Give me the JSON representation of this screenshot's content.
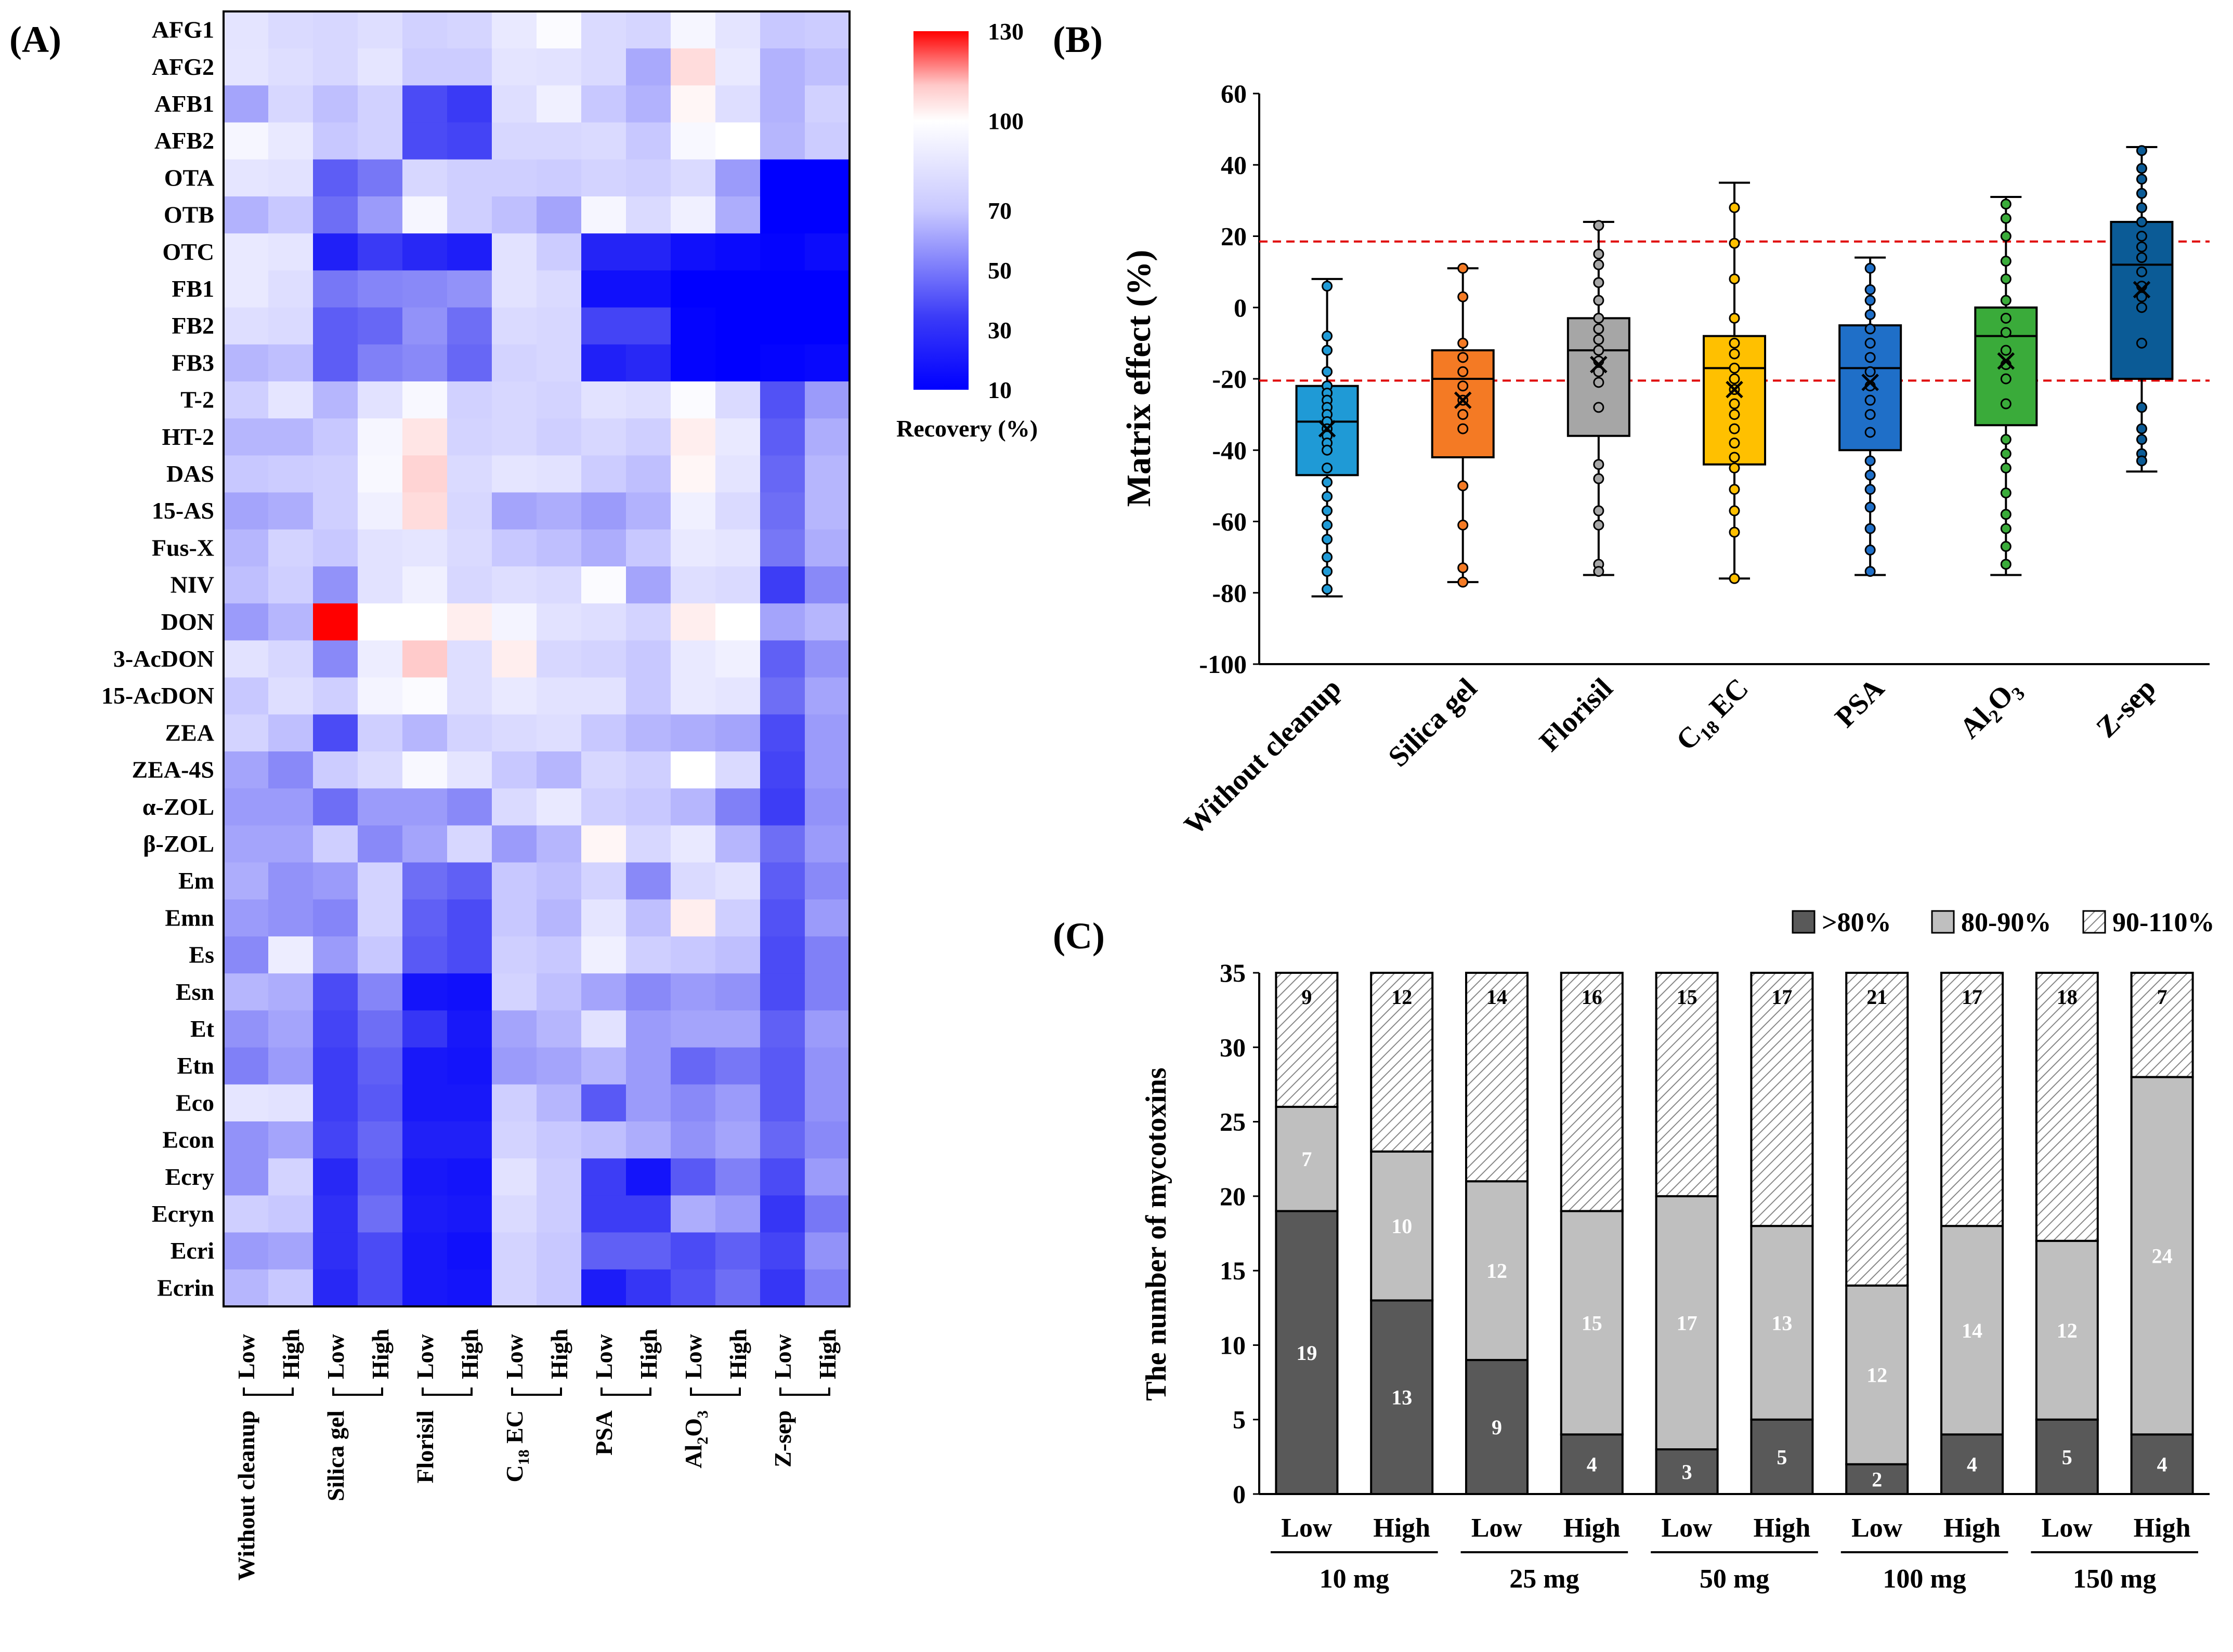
{
  "panel_labels": {
    "a": "(A)",
    "b": "(B)",
    "c": "(C)"
  },
  "chart_data": [
    {
      "type": "heatmap",
      "panel": "(A)",
      "row_labels": [
        "AFG1",
        "AFG2",
        "AFB1",
        "AFB2",
        "OTA",
        "OTB",
        "OTC",
        "FB1",
        "FB2",
        "FB3",
        "T-2",
        "HT-2",
        "DAS",
        "15-AS",
        "Fus-X",
        "NIV",
        "DON",
        "3-AcDON",
        "15-AcDON",
        "ZEA",
        "ZEA-4S",
        "α-ZOL",
        "β-ZOL",
        "Em",
        "Emn",
        "Es",
        "Esn",
        "Et",
        "Etn",
        "Eco",
        "Econ",
        "Ecry",
        "Ecryn",
        "Ecri",
        "Ecrin"
      ],
      "column_labels": [
        "Low",
        "High",
        "Low",
        "High",
        "Low",
        "High",
        "Low",
        "High",
        "Low",
        "High",
        "Low",
        "High",
        "Low",
        "High"
      ],
      "group_labels": [
        "Without cleanup",
        "Silica gel",
        "Florisil",
        "C18 EC",
        "PSA",
        "Al2O3",
        "Z-sep"
      ],
      "colorbar": {
        "ticks": [
          130,
          100,
          70,
          50,
          30,
          10
        ],
        "min": 10,
        "max": 130,
        "label": "Recovery (%)",
        "low_color": "#0000ff",
        "mid_color": "#ffffff",
        "high_color": "#ff0000"
      },
      "values": [
        [
          85,
          80,
          78,
          82,
          75,
          77,
          88,
          98,
          80,
          77,
          95,
          85,
          70,
          72
        ],
        [
          86,
          82,
          78,
          86,
          72,
          72,
          85,
          84,
          80,
          63,
          108,
          88,
          65,
          68
        ],
        [
          62,
          78,
          68,
          75,
          40,
          35,
          82,
          92,
          70,
          65,
          102,
          82,
          65,
          75
        ],
        [
          95,
          88,
          70,
          75,
          40,
          38,
          78,
          78,
          80,
          70,
          96,
          100,
          66,
          72
        ],
        [
          86,
          84,
          45,
          52,
          78,
          74,
          74,
          72,
          76,
          74,
          80,
          60,
          10,
          10
        ],
        [
          65,
          70,
          50,
          60,
          95,
          74,
          68,
          62,
          95,
          80,
          92,
          64,
          10,
          10
        ],
        [
          88,
          86,
          26,
          35,
          30,
          25,
          84,
          72,
          28,
          28,
          18,
          15,
          12,
          16
        ],
        [
          88,
          82,
          52,
          55,
          56,
          58,
          84,
          80,
          18,
          18,
          10,
          10,
          10,
          10
        ],
        [
          82,
          80,
          45,
          48,
          58,
          50,
          80,
          78,
          38,
          38,
          12,
          10,
          10,
          10
        ],
        [
          66,
          68,
          45,
          54,
          56,
          48,
          76,
          78,
          26,
          30,
          12,
          10,
          12,
          14
        ],
        [
          74,
          86,
          66,
          84,
          96,
          75,
          78,
          76,
          84,
          82,
          98,
          80,
          42,
          60
        ],
        [
          66,
          66,
          70,
          95,
          106,
          76,
          78,
          74,
          78,
          74,
          104,
          88,
          45,
          64
        ],
        [
          70,
          72,
          74,
          96,
          110,
          80,
          86,
          84,
          72,
          68,
          102,
          85,
          48,
          66
        ],
        [
          62,
          64,
          74,
          92,
          108,
          78,
          62,
          64,
          60,
          65,
          92,
          80,
          50,
          66
        ],
        [
          66,
          76,
          70,
          84,
          86,
          80,
          70,
          68,
          64,
          70,
          88,
          86,
          52,
          64
        ],
        [
          68,
          74,
          58,
          84,
          92,
          78,
          82,
          80,
          98,
          62,
          82,
          80,
          36,
          56
        ],
        [
          60,
          66,
          130,
          100,
          100,
          104,
          94,
          84,
          82,
          76,
          104,
          100,
          62,
          66
        ],
        [
          84,
          78,
          56,
          90,
          112,
          82,
          104,
          78,
          76,
          70,
          88,
          92,
          46,
          58
        ],
        [
          70,
          82,
          74,
          94,
          98,
          82,
          88,
          84,
          84,
          70,
          88,
          86,
          50,
          62
        ],
        [
          76,
          68,
          40,
          74,
          66,
          76,
          80,
          82,
          70,
          66,
          64,
          62,
          40,
          60
        ],
        [
          62,
          56,
          72,
          80,
          96,
          86,
          70,
          66,
          78,
          74,
          100,
          80,
          38,
          60
        ],
        [
          60,
          60,
          50,
          60,
          60,
          56,
          80,
          88,
          74,
          70,
          66,
          54,
          36,
          58
        ],
        [
          62,
          62,
          74,
          56,
          62,
          78,
          60,
          66,
          102,
          78,
          88,
          66,
          50,
          60
        ],
        [
          64,
          58,
          60,
          76,
          50,
          46,
          70,
          68,
          76,
          56,
          80,
          84,
          45,
          56
        ],
        [
          60,
          58,
          55,
          76,
          46,
          40,
          70,
          66,
          86,
          68,
          104,
          74,
          42,
          60
        ],
        [
          56,
          90,
          60,
          70,
          44,
          40,
          74,
          70,
          92,
          74,
          70,
          68,
          40,
          54
        ],
        [
          66,
          64,
          40,
          55,
          20,
          18,
          76,
          68,
          62,
          56,
          60,
          58,
          40,
          54
        ],
        [
          58,
          62,
          38,
          50,
          34,
          22,
          62,
          66,
          84,
          60,
          62,
          62,
          46,
          60
        ],
        [
          54,
          60,
          36,
          46,
          22,
          20,
          60,
          62,
          66,
          60,
          48,
          52,
          44,
          58
        ],
        [
          86,
          84,
          36,
          44,
          22,
          22,
          74,
          66,
          44,
          60,
          56,
          60,
          44,
          58
        ],
        [
          58,
          62,
          38,
          48,
          26,
          26,
          76,
          70,
          68,
          64,
          58,
          62,
          48,
          56
        ],
        [
          58,
          76,
          30,
          46,
          22,
          20,
          84,
          72,
          36,
          20,
          44,
          54,
          40,
          60
        ],
        [
          74,
          70,
          32,
          50,
          24,
          22,
          80,
          72,
          36,
          36,
          64,
          60,
          34,
          52
        ],
        [
          60,
          62,
          32,
          40,
          22,
          18,
          76,
          70,
          46,
          46,
          40,
          46,
          38,
          58
        ],
        [
          66,
          70,
          30,
          40,
          22,
          20,
          76,
          70,
          24,
          34,
          42,
          50,
          34,
          54
        ]
      ]
    },
    {
      "type": "box",
      "panel": "(B)",
      "ylabel": "Matrix effect (%)",
      "ylim": [
        -100,
        60
      ],
      "yticks": [
        60,
        40,
        20,
        0,
        -20,
        -40,
        -60,
        -80,
        -100
      ],
      "reference_lines": [
        18.5,
        -20.5
      ],
      "categories": [
        "Without cleanup",
        "Silica gel",
        "Florisil",
        "C18 EC",
        "PSA",
        "Al2O3",
        "Z-sep"
      ],
      "series": [
        {
          "name": "Without cleanup",
          "color": "#1f9ad6",
          "min": -81,
          "q1": -47,
          "median": -32,
          "q3": -22,
          "max": 8,
          "mean": -34,
          "points": [
            6,
            -8,
            -12,
            -18,
            -22,
            -24,
            -26,
            -28,
            -30,
            -32,
            -34,
            -36,
            -38,
            -40,
            -45,
            -49,
            -53,
            -57,
            -61,
            -65,
            -70,
            -74,
            -79
          ]
        },
        {
          "name": "Silica gel",
          "color": "#f47a24",
          "min": -77,
          "q1": -42,
          "median": -20,
          "q3": -12,
          "max": 11,
          "mean": -26,
          "points": [
            11,
            3,
            -10,
            -14,
            -18,
            -22,
            -26,
            -30,
            -34,
            -50,
            -61,
            -73,
            -77
          ]
        },
        {
          "name": "Florisil",
          "color": "#a6a6a6",
          "min": -75,
          "q1": -36,
          "median": -12,
          "q3": -3,
          "max": 24,
          "mean": -16,
          "points": [
            23,
            15,
            12,
            7,
            2,
            -3,
            -6,
            -9,
            -12,
            -15,
            -18,
            -21,
            -28,
            -44,
            -48,
            -57,
            -61,
            -72,
            -74
          ]
        },
        {
          "name": "C18 EC",
          "color": "#ffc000",
          "min": -76,
          "q1": -44,
          "median": -17,
          "q3": -8,
          "max": 35,
          "mean": -23,
          "points": [
            28,
            18,
            8,
            -3,
            -10,
            -13,
            -17,
            -20,
            -23,
            -27,
            -30,
            -34,
            -38,
            -42,
            -45,
            -51,
            -57,
            -63,
            -76
          ]
        },
        {
          "name": "PSA",
          "color": "#1f6fc8",
          "min": -75,
          "q1": -40,
          "median": -17,
          "q3": -5,
          "max": 14,
          "mean": -21,
          "points": [
            11,
            5,
            2,
            -2,
            -6,
            -10,
            -14,
            -18,
            -22,
            -26,
            -30,
            -35,
            -43,
            -47,
            -51,
            -56,
            -62,
            -68,
            -74
          ]
        },
        {
          "name": "Al2O3",
          "color": "#3aab3a",
          "min": -75,
          "q1": -33,
          "median": -8,
          "q3": 0,
          "max": 31,
          "mean": -15,
          "points": [
            29,
            25,
            20,
            13,
            8,
            2,
            -3,
            -7,
            -12,
            -16,
            -20,
            -27,
            -37,
            -41,
            -45,
            -52,
            -58,
            -62,
            -67,
            -72
          ]
        },
        {
          "name": "Z-sep",
          "color": "#0b5b96",
          "min": -46,
          "q1": -20,
          "median": 12,
          "q3": 24,
          "max": 45,
          "mean": 5,
          "points": [
            44,
            39,
            36,
            32,
            28,
            24,
            20,
            17,
            14,
            10,
            6,
            3,
            0,
            -10,
            -28,
            -34,
            -37,
            -41,
            -43
          ]
        }
      ]
    },
    {
      "type": "bar",
      "stacked": true,
      "panel": "(C)",
      "ylabel": "The number of mycotoxins",
      "ylim": [
        0,
        35
      ],
      "yticks": [
        0,
        5,
        10,
        15,
        20,
        25,
        30,
        35
      ],
      "categories": [
        "Low",
        "High",
        "Low",
        "High",
        "Low",
        "High",
        "Low",
        "High",
        "Low",
        "High"
      ],
      "groups": [
        "10 mg",
        "25 mg",
        "50 mg",
        "100 mg",
        "150 mg"
      ],
      "legend_position": "top-right",
      "series": [
        {
          "name": ">80%",
          "color": "#595959",
          "values": [
            19,
            13,
            9,
            4,
            3,
            5,
            2,
            4,
            5,
            4
          ]
        },
        {
          "name": "80-90%",
          "color": "#bfbfbf",
          "values": [
            7,
            10,
            12,
            15,
            17,
            13,
            12,
            14,
            12,
            24
          ]
        },
        {
          "name": "90-110%",
          "pattern": "hatch",
          "values": [
            9,
            12,
            14,
            16,
            15,
            17,
            21,
            17,
            18,
            7
          ]
        }
      ]
    }
  ]
}
